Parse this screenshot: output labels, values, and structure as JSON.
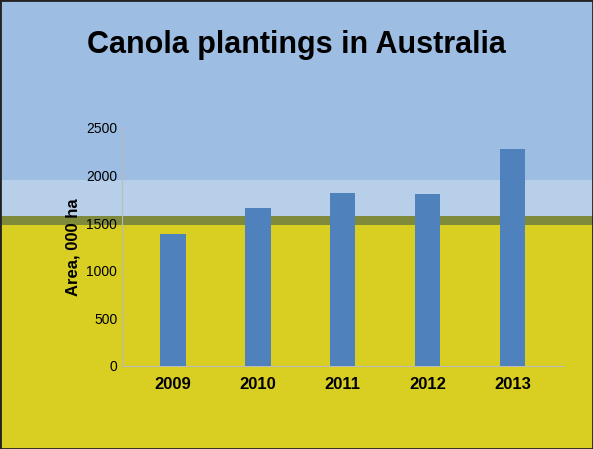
{
  "chart_data": {
    "type": "bar",
    "title": "Canola plantings in Australia",
    "ylabel": "Area, 000 ha",
    "categories": [
      "2009",
      "2010",
      "2011",
      "2012",
      "2013"
    ],
    "values": [
      1390,
      1660,
      1820,
      1810,
      2280
    ],
    "color": "#4f81bd",
    "ylim": [
      0,
      2500
    ],
    "yticks": [
      0,
      500,
      1000,
      1500,
      2000,
      2500
    ],
    "grid": false
  }
}
